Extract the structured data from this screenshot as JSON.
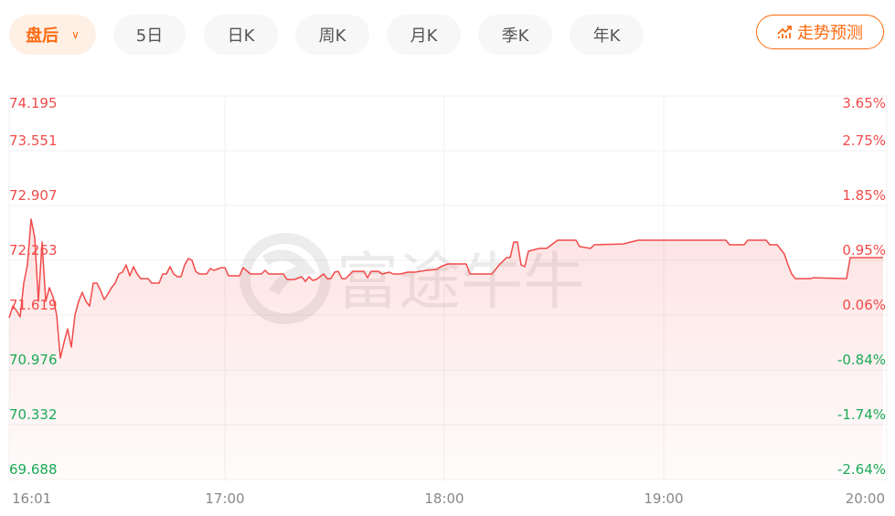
{
  "tabs": [
    {
      "label": "盘后",
      "active": true
    },
    {
      "label": "5日"
    },
    {
      "label": "日K"
    },
    {
      "label": "周K"
    },
    {
      "label": "月K"
    },
    {
      "label": "季K"
    },
    {
      "label": "年K"
    }
  ],
  "predict_button": {
    "label": "走势预测",
    "icon": "trend-chart-icon"
  },
  "watermark": "富途牛牛",
  "colors": {
    "up": "#f24a4a",
    "down": "#1aaa55",
    "accent": "#ff6a0f",
    "line": "#f24a4a"
  },
  "chart_data": {
    "type": "area",
    "title": "",
    "xlabel": "",
    "ylabel": "",
    "base_price": 71.58,
    "ylim": [
      69.688,
      74.195
    ],
    "xlim": [
      "16:01",
      "20:00"
    ],
    "grid": true,
    "y_ticks_left": [
      "74.195",
      "73.551",
      "72.907",
      "72.263",
      "71.619",
      "70.976",
      "70.332",
      "69.688"
    ],
    "y_ticks_right": [
      "3.65%",
      "2.75%",
      "1.85%",
      "0.95%",
      "0.06%",
      "-0.84%",
      "-1.74%",
      "-2.64%"
    ],
    "x_ticks": [
      "16:01",
      "17:00",
      "18:00",
      "19:00",
      "20:00"
    ],
    "points": [
      [
        "16:01",
        71.587
      ],
      [
        "16:02",
        71.726
      ],
      [
        "16:03",
        71.673
      ],
      [
        "16:04",
        71.598
      ],
      [
        "16:05",
        71.995
      ],
      [
        "16:06",
        72.209
      ],
      [
        "16:07",
        72.746
      ],
      [
        "16:08",
        72.531
      ],
      [
        "16:09",
        71.78
      ],
      [
        "16:10",
        72.478
      ],
      [
        "16:11",
        71.78
      ],
      [
        "16:12",
        71.941
      ],
      [
        "16:13",
        71.834
      ],
      [
        "16:14",
        71.619
      ],
      [
        "16:15",
        71.115
      ],
      [
        "16:16",
        71.297
      ],
      [
        "16:17",
        71.458
      ],
      [
        "16:18",
        71.244
      ],
      [
        "16:19",
        71.619
      ],
      [
        "16:20",
        71.78
      ],
      [
        "16:21",
        71.887
      ],
      [
        "16:22",
        71.78
      ],
      [
        "16:23",
        71.726
      ],
      [
        "16:24",
        71.995
      ],
      [
        "16:25",
        71.995
      ],
      [
        "16:26",
        71.909
      ],
      [
        "16:27",
        71.802
      ],
      [
        "16:28",
        71.866
      ],
      [
        "16:29",
        71.941
      ],
      [
        "16:30",
        71.995
      ],
      [
        "16:31",
        72.102
      ],
      [
        "16:32",
        72.124
      ],
      [
        "16:33",
        72.209
      ],
      [
        "16:34",
        72.081
      ],
      [
        "16:35",
        72.188
      ],
      [
        "16:36",
        72.102
      ],
      [
        "16:37",
        72.048
      ],
      [
        "16:39",
        72.048
      ],
      [
        "16:40",
        71.995
      ],
      [
        "16:42",
        71.995
      ],
      [
        "16:43",
        72.102
      ],
      [
        "16:44",
        72.102
      ],
      [
        "16:45",
        72.188
      ],
      [
        "16:46",
        72.102
      ],
      [
        "16:47",
        72.07
      ],
      [
        "16:48",
        72.07
      ],
      [
        "16:49",
        72.209
      ],
      [
        "16:50",
        72.285
      ],
      [
        "16:51",
        72.263
      ],
      [
        "16:52",
        72.134
      ],
      [
        "16:53",
        72.102
      ],
      [
        "16:55",
        72.102
      ],
      [
        "16:56",
        72.167
      ],
      [
        "16:57",
        72.145
      ],
      [
        "16:59",
        72.177
      ],
      [
        "17:00",
        72.177
      ],
      [
        "17:01",
        72.081
      ],
      [
        "17:04",
        72.081
      ],
      [
        "17:05",
        72.177
      ],
      [
        "17:07",
        72.102
      ],
      [
        "17:10",
        72.102
      ],
      [
        "17:11",
        72.145
      ],
      [
        "17:12",
        72.102
      ],
      [
        "17:16",
        72.102
      ],
      [
        "17:17",
        72.038
      ],
      [
        "17:19",
        72.038
      ],
      [
        "17:21",
        72.07
      ],
      [
        "17:22",
        72.016
      ],
      [
        "17:23",
        72.07
      ],
      [
        "17:24",
        72.027
      ],
      [
        "17:25",
        72.038
      ],
      [
        "17:26",
        72.07
      ],
      [
        "17:27",
        72.102
      ],
      [
        "17:28",
        72.048
      ],
      [
        "17:29",
        72.048
      ],
      [
        "17:30",
        72.124
      ],
      [
        "17:31",
        72.134
      ],
      [
        "17:32",
        72.048
      ],
      [
        "17:33",
        72.048
      ],
      [
        "17:35",
        72.134
      ],
      [
        "17:38",
        72.134
      ],
      [
        "17:39",
        72.059
      ],
      [
        "17:40",
        72.134
      ],
      [
        "17:42",
        72.134
      ],
      [
        "17:43",
        72.102
      ],
      [
        "17:45",
        72.124
      ],
      [
        "17:46",
        72.102
      ],
      [
        "17:48",
        72.102
      ],
      [
        "17:50",
        72.124
      ],
      [
        "17:52",
        72.124
      ],
      [
        "17:55",
        72.145
      ],
      [
        "17:58",
        72.156
      ],
      [
        "17:59",
        72.188
      ],
      [
        "18:01",
        72.22
      ],
      [
        "18:06",
        72.22
      ],
      [
        "18:07",
        72.102
      ],
      [
        "18:13",
        72.102
      ],
      [
        "18:15",
        72.209
      ],
      [
        "18:17",
        72.295
      ],
      [
        "18:18",
        72.295
      ],
      [
        "18:19",
        72.478
      ],
      [
        "18:20",
        72.478
      ],
      [
        "18:21",
        72.209
      ],
      [
        "18:22",
        72.188
      ],
      [
        "18:23",
        72.37
      ],
      [
        "18:25",
        72.392
      ],
      [
        "18:26",
        72.403
      ],
      [
        "18:28",
        72.403
      ],
      [
        "18:31",
        72.499
      ],
      [
        "18:36",
        72.499
      ],
      [
        "18:37",
        72.424
      ],
      [
        "18:40",
        72.403
      ],
      [
        "18:41",
        72.446
      ],
      [
        "18:49",
        72.456
      ],
      [
        "18:51",
        72.478
      ],
      [
        "18:53",
        72.499
      ],
      [
        "19:17",
        72.499
      ],
      [
        "19:18",
        72.446
      ],
      [
        "19:22",
        72.446
      ],
      [
        "19:23",
        72.499
      ],
      [
        "19:28",
        72.499
      ],
      [
        "19:29",
        72.446
      ],
      [
        "19:31",
        72.446
      ],
      [
        "19:33",
        72.338
      ],
      [
        "19:34",
        72.209
      ],
      [
        "19:35",
        72.102
      ],
      [
        "19:36",
        72.048
      ],
      [
        "19:40",
        72.048
      ],
      [
        "19:41",
        72.059
      ],
      [
        "19:50",
        72.048
      ],
      [
        "19:51",
        72.295
      ],
      [
        "20:00",
        72.295
      ]
    ]
  }
}
